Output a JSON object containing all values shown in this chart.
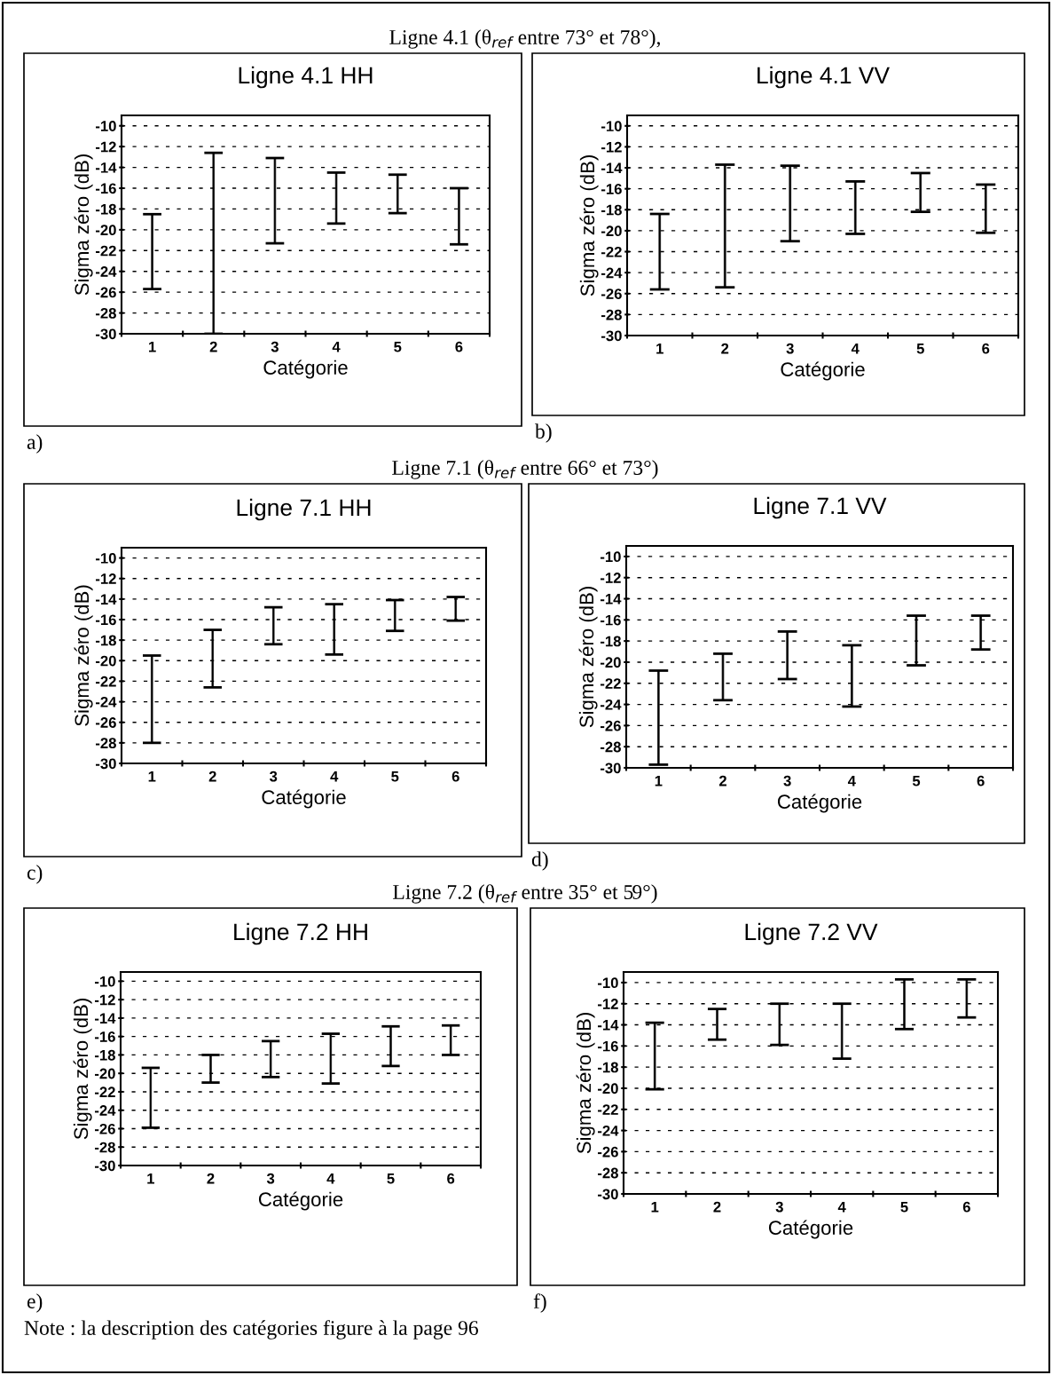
{
  "chart_data": [
    {
      "type": "bar",
      "title": "Ligne 4.1 HH",
      "xlabel": "Catégorie",
      "ylabel": "Sigma zéro (dB)",
      "categories": [
        "1",
        "2",
        "3",
        "4",
        "5",
        "6"
      ],
      "base": [
        -25.7,
        -30,
        -21.3,
        -19.4,
        -18.4,
        -21.4
      ],
      "values": [
        7.2,
        17.4,
        8.2,
        4.9,
        3.7,
        5.4
      ],
      "color": "#000000",
      "ylim": [
        -30,
        -9
      ],
      "yticks": [
        -30,
        -28,
        -26,
        -24,
        -22,
        -20,
        -18,
        -16,
        -14,
        -12,
        -10
      ],
      "grid": "y",
      "line_style": "dashed",
      "annotations": [
        "a)",
        "Ligne 4.1 (θ$_{ref}$ entre 73° et 78°),"
      ]
    },
    {
      "type": "bar",
      "title": "Ligne 4.1 VV",
      "xlabel": "Catégorie",
      "ylabel": "Sigma zéro (dB)",
      "categories": [
        "1",
        "2",
        "3",
        "4",
        "5",
        "6"
      ],
      "base": [
        -25.6,
        -25.4,
        -21.0,
        -20.3,
        -18.2,
        -20.2
      ],
      "values": [
        7.2,
        11.7,
        7.2,
        5.0,
        3.7,
        4.6
      ],
      "color": "#000000",
      "ylim": [
        -30,
        -9
      ],
      "yticks": [
        -30,
        -28,
        -26,
        -24,
        -22,
        -20,
        -18,
        -16,
        -14,
        -12,
        -10
      ],
      "grid": "y",
      "line_style": "dashed",
      "annotations": [
        "b)"
      ]
    },
    {
      "type": "bar",
      "title": "Ligne 7.1 HH",
      "xlabel": "Catégorie",
      "ylabel": "Sigma zéro (dB)",
      "categories": [
        "1",
        "2",
        "3",
        "4",
        "5",
        "6"
      ],
      "base": [
        -28.0,
        -22.6,
        -18.4,
        -19.4,
        -17.1,
        -16.1
      ],
      "values": [
        8.5,
        5.6,
        3.6,
        4.9,
        3.0,
        2.3
      ],
      "color": "#000000",
      "ylim": [
        -30,
        -9
      ],
      "yticks": [
        -30,
        -28,
        -26,
        -24,
        -22,
        -20,
        -18,
        -16,
        -14,
        -12,
        -10
      ],
      "grid": "y",
      "line_style": "dashed",
      "annotations": [
        "c)",
        "Ligne 7.1 (θ$_{ref}$ entre 66° et 73°)"
      ]
    },
    {
      "type": "bar",
      "title": "Ligne 7.1 VV",
      "xlabel": "Catégorie",
      "ylabel": "Sigma zéro (dB)",
      "categories": [
        "1",
        "2",
        "3",
        "4",
        "5",
        "6"
      ],
      "base": [
        -29.7,
        -23.6,
        -21.6,
        -24.2,
        -20.3,
        -18.8
      ],
      "values": [
        8.9,
        4.4,
        4.5,
        5.8,
        4.7,
        3.2
      ],
      "color": "#000000",
      "ylim": [
        -30,
        -9
      ],
      "yticks": [
        -30,
        -28,
        -26,
        -24,
        -22,
        -20,
        -18,
        -16,
        -14,
        -12,
        -10
      ],
      "grid": "y",
      "line_style": "dashed",
      "annotations": [
        "d)"
      ]
    },
    {
      "type": "bar",
      "title": "Ligne 7.2 HH",
      "xlabel": "Catégorie",
      "ylabel": "Sigma zéro (dB)",
      "categories": [
        "1",
        "2",
        "3",
        "4",
        "5",
        "6"
      ],
      "base": [
        -25.9,
        -21.0,
        -20.4,
        -21.1,
        -19.2,
        -18.0
      ],
      "values": [
        6.5,
        3.0,
        3.9,
        5.4,
        4.3,
        3.2
      ],
      "color": "#000000",
      "ylim": [
        -30,
        -9
      ],
      "yticks": [
        -30,
        -28,
        -26,
        -24,
        -22,
        -20,
        -18,
        -16,
        -14,
        -12,
        -10
      ],
      "grid": "y",
      "line_style": "dashed",
      "annotations": [
        "e)",
        "Ligne 7.2 (θ$_{ref}$ entre 35° et 59°)"
      ]
    },
    {
      "type": "bar",
      "title": "Ligne 7.2 VV",
      "xlabel": "Catégorie",
      "ylabel": "Sigma zéro (dB)",
      "categories": [
        "1",
        "2",
        "3",
        "4",
        "5",
        "6"
      ],
      "base": [
        -20.1,
        -15.4,
        -15.9,
        -17.2,
        -14.4,
        -13.3
      ],
      "values": [
        6.3,
        2.9,
        3.9,
        5.2,
        4.7,
        3.6
      ],
      "color": "#000000",
      "ylim": [
        -30,
        -9
      ],
      "yticks": [
        -30,
        -28,
        -26,
        -24,
        -22,
        -20,
        -18,
        -16,
        -14,
        -12,
        -10
      ],
      "grid": "y",
      "line_style": "dashed",
      "annotations": [
        "f)",
        "Note : la description des catégories figure à la page 96"
      ]
    }
  ]
}
